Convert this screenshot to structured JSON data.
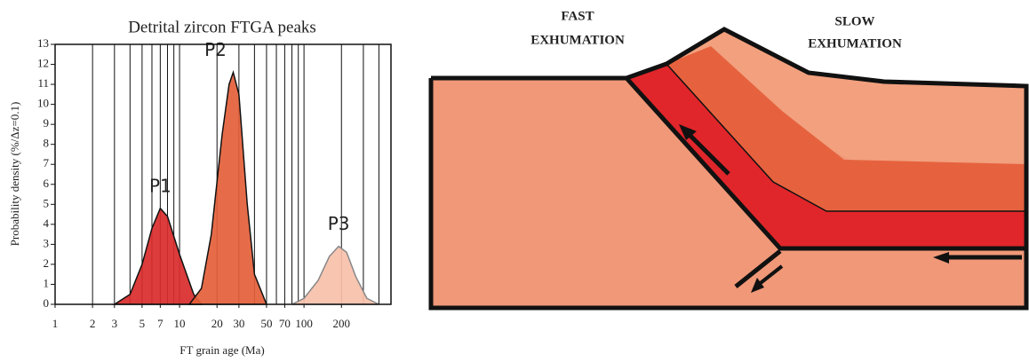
{
  "chart_data": {
    "type": "density",
    "title": "Detrital zircon FTGA peaks",
    "ylabel": "Probability density (%/Δz=0.1)",
    "xlabel": "FT grain age (Ma)",
    "xscale": "log",
    "xlim": [
      1,
      500
    ],
    "ylim": [
      0,
      13
    ],
    "xticks": [
      1,
      2,
      3,
      5,
      7,
      10,
      20,
      30,
      50,
      70,
      100,
      200
    ],
    "yticks": [
      0,
      1,
      2,
      3,
      4,
      5,
      6,
      7,
      8,
      9,
      10,
      11,
      12,
      13
    ],
    "xgrid": [
      2,
      3,
      4,
      5,
      6,
      7,
      8,
      9,
      10,
      20,
      30,
      40,
      50,
      60,
      70,
      80,
      90,
      100,
      200,
      300,
      400
    ],
    "series": [
      {
        "name": "P1",
        "color": "#d92b2b",
        "x": [
          3,
          4,
          5,
          6,
          7,
          8,
          10,
          13,
          15
        ],
        "values": [
          0,
          0.5,
          2,
          3.8,
          4.8,
          4.4,
          2.5,
          0.5,
          0
        ]
      },
      {
        "name": "P2",
        "color": "#e4603a",
        "x": [
          12,
          15,
          18,
          22,
          25,
          27,
          30,
          35,
          40,
          50
        ],
        "values": [
          0,
          0.8,
          3.5,
          8.5,
          11,
          11.6,
          10.5,
          5,
          1.5,
          0
        ]
      },
      {
        "name": "P3",
        "color": "#f7c0aa",
        "x": [
          80,
          100,
          130,
          160,
          190,
          220,
          260,
          320,
          400
        ],
        "values": [
          0,
          0.3,
          1.2,
          2.4,
          2.9,
          2.6,
          1.4,
          0.3,
          0
        ]
      }
    ]
  },
  "diagram": {
    "labels": [
      {
        "lines": [
          "FAST",
          "EXHUMATION"
        ]
      },
      {
        "lines": [
          "SLOW",
          "EXHUMATION"
        ]
      }
    ]
  }
}
